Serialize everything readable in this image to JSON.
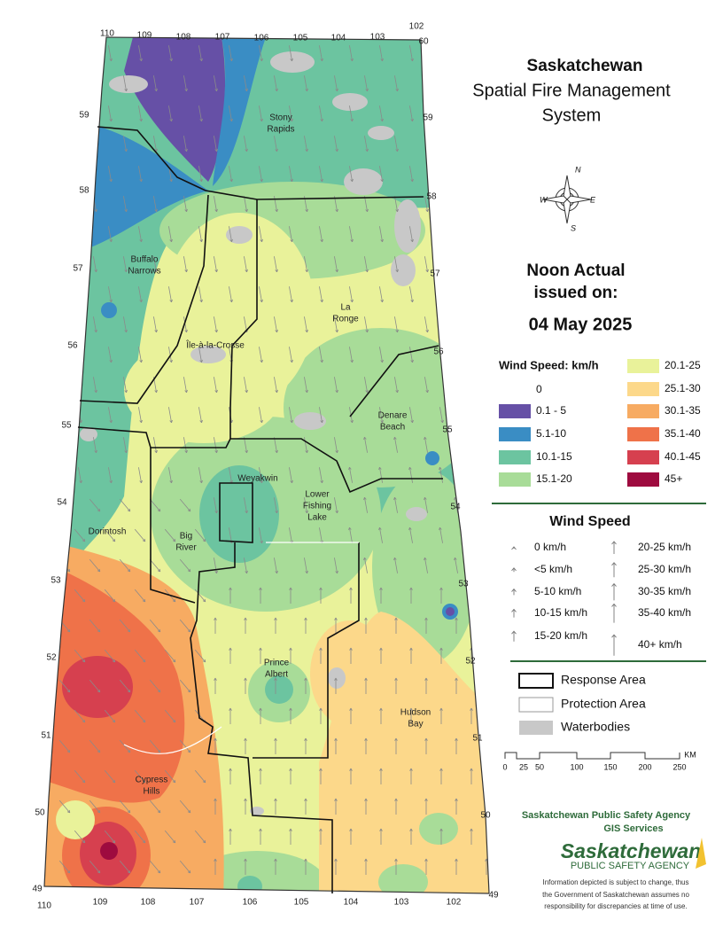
{
  "header": {
    "title": "Saskatchewan",
    "subtitle_lines": [
      "Spatial Fire Management",
      "System"
    ]
  },
  "compass": {
    "n": "N",
    "e": "E",
    "s": "S",
    "w": "W"
  },
  "issue": {
    "lines": [
      "Noon Actual",
      "issued on:"
    ],
    "date": "04 May 2025"
  },
  "wind_speed_legend": {
    "title": "Wind Speed: km/h",
    "classes": [
      {
        "label": "0"
      },
      {
        "label": "0.1 - 5",
        "color": "#6650a6"
      },
      {
        "label": "5.1-10",
        "color": "#3a8dc4"
      },
      {
        "label": "10.1-15",
        "color": "#6cc4a0"
      },
      {
        "label": "15.1-20",
        "color": "#a8dc98"
      },
      {
        "label": "20.1-25",
        "color": "#e9f29a"
      },
      {
        "label": "25.1-30",
        "color": "#fcd88a"
      },
      {
        "label": "30.1-35",
        "color": "#f7ab62"
      },
      {
        "label": "35.1-40",
        "color": "#ef7249"
      },
      {
        "label": "40.1-45",
        "color": "#d6404f"
      },
      {
        "label": "45+",
        "color": "#9e0b3f"
      }
    ]
  },
  "wind_arrow_legend": {
    "title": "Wind Speed",
    "items": [
      "0 km/h",
      "<5 km/h",
      "5-10 km/h",
      "10-15 km/h",
      "15-20 km/h",
      "20-25 km/h",
      "25-30 km/h",
      "30-35 km/h",
      "35-40 km/h",
      "40+ km/h"
    ]
  },
  "boundary_legend": {
    "items": [
      "Response Area",
      "Protection Area",
      "Waterbodies"
    ]
  },
  "scale_bar": {
    "labels": [
      "0",
      "25",
      "50",
      "100",
      "150",
      "200",
      "250"
    ],
    "unit": "KM"
  },
  "map": {
    "latitudes_west": [
      "59",
      "58",
      "57",
      "56",
      "55",
      "54",
      "53",
      "52",
      "51",
      "50",
      "49"
    ],
    "latitudes_east": [
      "60",
      "59",
      "58",
      "57",
      "56",
      "55",
      "54",
      "53",
      "52",
      "51",
      "50",
      "49"
    ],
    "longitudes_top": [
      "110",
      "109",
      "108",
      "107",
      "106",
      "105",
      "104",
      "103",
      "102"
    ],
    "longitudes_bottom": [
      "110",
      "109",
      "108",
      "107",
      "106",
      "105",
      "104",
      "103",
      "102"
    ],
    "places": [
      [
        "Stony",
        "Rapids"
      ],
      [
        "Buffalo",
        "Narrows"
      ],
      [
        "La",
        "Ronge"
      ],
      [
        "Île-à-la-Crosse"
      ],
      [
        "Denare",
        "Beach"
      ],
      [
        "Weyakwin"
      ],
      [
        "Lower",
        "Fishing",
        "Lake"
      ],
      [
        "Dorintosh"
      ],
      [
        "Big",
        "River"
      ],
      [
        "Prince",
        "Albert"
      ],
      [
        "Hudson",
        "Bay"
      ],
      [
        "Cypress",
        "Hills"
      ]
    ]
  },
  "footer": {
    "agency": "Saskatchewan Public Safety Agency",
    "unit": "GIS  Services",
    "logo_name": "Saskatchewan",
    "logo_sub": "PUBLIC SAFETY AGENCY",
    "disclaimer": [
      "Information depicted is subject to change, thus",
      "the Government of Saskatchewan assumes no",
      "responsibility for discrepancies at time of use."
    ]
  }
}
